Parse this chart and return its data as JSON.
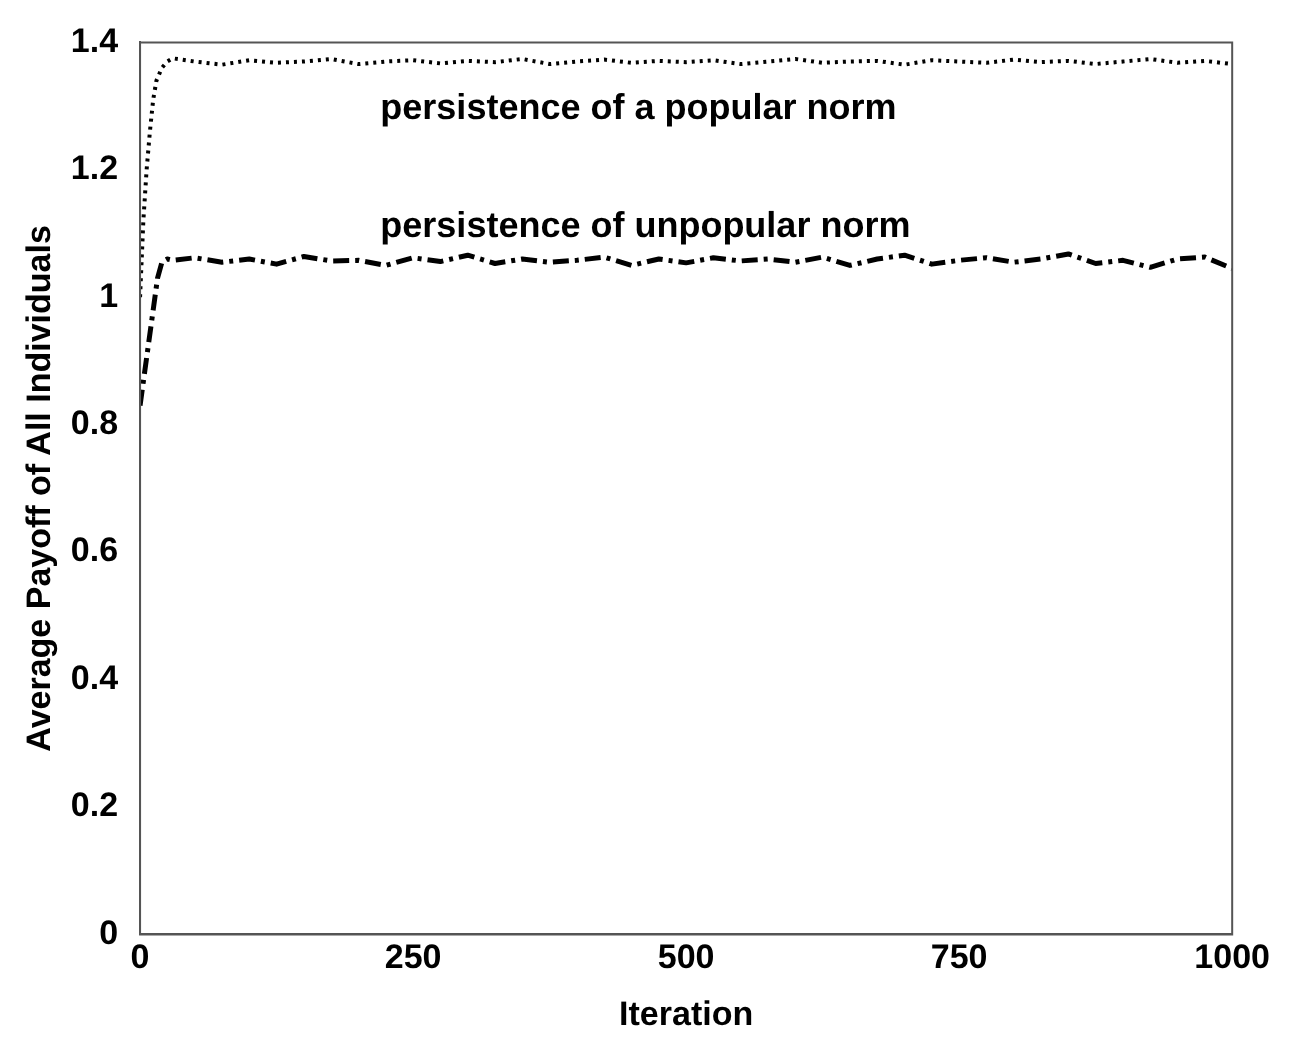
{
  "chart_data": {
    "type": "line",
    "xlabel": "Iteration",
    "ylabel": "Average Payoff of All Individuals",
    "xlim": [
      0,
      1000
    ],
    "ylim": [
      0,
      1.4
    ],
    "xticks": [
      0,
      250,
      500,
      750,
      1000
    ],
    "yticks": [
      0,
      0.2,
      0.4,
      0.6,
      0.8,
      1,
      1.2,
      1.4
    ],
    "grid": false,
    "legend": false,
    "marker": "none",
    "series": [
      {
        "name": "persistence of a popular norm",
        "color": "#000000",
        "line_style": "dotted",
        "x": [
          0,
          3,
          6,
          9,
          12,
          15,
          20,
          25,
          30,
          50,
          75,
          100,
          125,
          150,
          175,
          200,
          225,
          250,
          275,
          300,
          325,
          350,
          375,
          400,
          425,
          450,
          475,
          500,
          525,
          550,
          575,
          600,
          625,
          650,
          675,
          700,
          725,
          750,
          775,
          800,
          825,
          850,
          875,
          900,
          925,
          950,
          975,
          1000
        ],
        "values": [
          1.0,
          1.12,
          1.2,
          1.26,
          1.31,
          1.34,
          1.36,
          1.37,
          1.375,
          1.37,
          1.365,
          1.372,
          1.368,
          1.37,
          1.374,
          1.366,
          1.37,
          1.372,
          1.367,
          1.371,
          1.369,
          1.374,
          1.366,
          1.37,
          1.373,
          1.368,
          1.371,
          1.369,
          1.372,
          1.366,
          1.37,
          1.374,
          1.368,
          1.37,
          1.371,
          1.365,
          1.372,
          1.37,
          1.368,
          1.373,
          1.369,
          1.371,
          1.366,
          1.37,
          1.374,
          1.368,
          1.371,
          1.366
        ]
      },
      {
        "name": "persistence of unpopular norm",
        "color": "#000000",
        "line_style": "dashed",
        "x": [
          0,
          4,
          8,
          12,
          16,
          20,
          25,
          30,
          50,
          75,
          100,
          125,
          150,
          175,
          200,
          225,
          250,
          275,
          300,
          325,
          350,
          375,
          400,
          425,
          450,
          475,
          500,
          525,
          550,
          575,
          600,
          625,
          650,
          675,
          700,
          725,
          750,
          775,
          800,
          825,
          850,
          875,
          900,
          925,
          950,
          975,
          1000
        ],
        "values": [
          0.83,
          0.88,
          0.93,
          0.98,
          1.03,
          1.055,
          1.06,
          1.058,
          1.062,
          1.055,
          1.06,
          1.052,
          1.064,
          1.057,
          1.058,
          1.05,
          1.062,
          1.056,
          1.066,
          1.053,
          1.06,
          1.055,
          1.058,
          1.063,
          1.05,
          1.06,
          1.054,
          1.062,
          1.057,
          1.06,
          1.055,
          1.063,
          1.05,
          1.06,
          1.066,
          1.052,
          1.058,
          1.062,
          1.055,
          1.06,
          1.068,
          1.053,
          1.058,
          1.047,
          1.06,
          1.063,
          1.045
        ]
      }
    ]
  }
}
